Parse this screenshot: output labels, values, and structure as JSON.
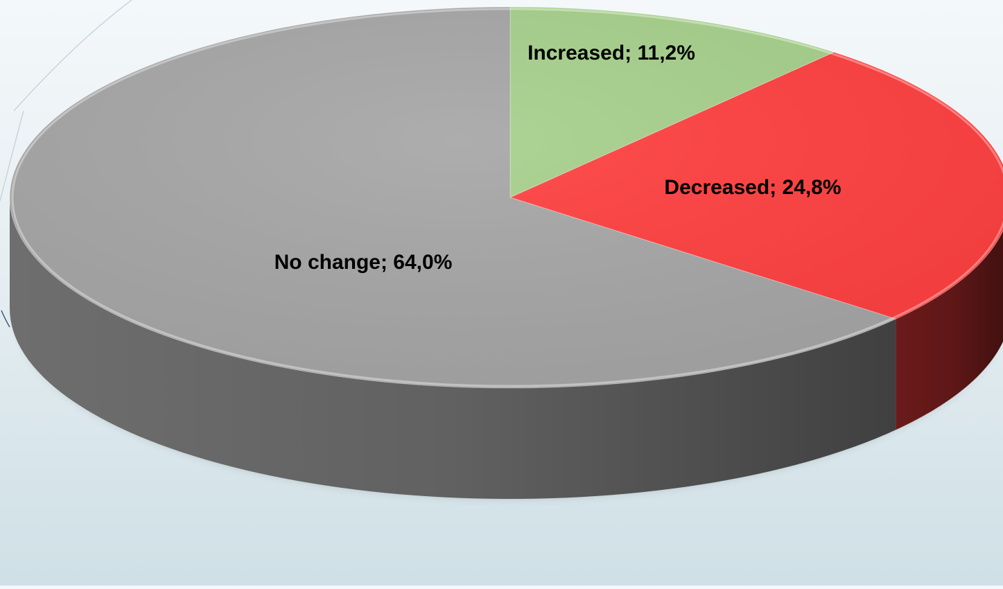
{
  "chart_data": {
    "type": "pie",
    "style": "3d",
    "slices": [
      {
        "label": "Increased",
        "value": 11.2,
        "data_label": "Increased; 11,2%",
        "color": "#a6d08b",
        "side_color": "#5f7d4e"
      },
      {
        "label": "Decreased",
        "value": 24.8,
        "data_label": "Decreased; 24,8%",
        "color": "#ff3f3f",
        "side_color": "#6b1a1a"
      },
      {
        "label": "No change",
        "value": 64.0,
        "data_label": "No change; 64,0%",
        "color": "#a6a6a6",
        "side_color": "#6e6e6e"
      }
    ],
    "start_angle_deg": 0,
    "direction": "clockwise",
    "legend": "none",
    "title": ""
  }
}
